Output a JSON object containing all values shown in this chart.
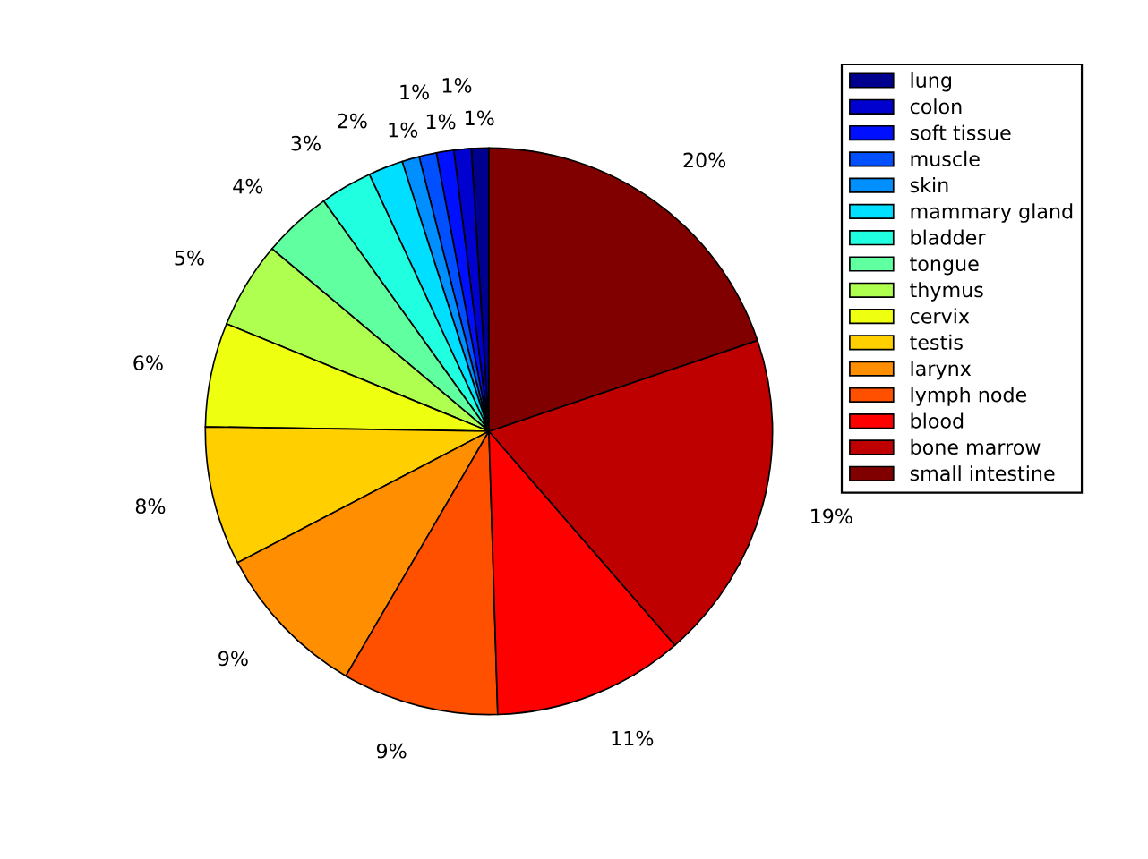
{
  "chart_data": {
    "type": "pie",
    "categories": [
      "lung",
      "colon",
      "soft tissue",
      "muscle",
      "skin",
      "mammary gland",
      "bladder",
      "tongue",
      "thymus",
      "cervix",
      "testis",
      "larynx",
      "lymph node",
      "blood",
      "bone marrow",
      "small intestine"
    ],
    "values": [
      1,
      1,
      1,
      1,
      1,
      2,
      3,
      4,
      5,
      6,
      8,
      9,
      9,
      11,
      19,
      20
    ],
    "value_labels": [
      "1%",
      "1%",
      "1%",
      "1%",
      "1%",
      "2%",
      "3%",
      "4%",
      "5%",
      "6%",
      "8%",
      "9%",
      "9%",
      "11%",
      "19%",
      "20%"
    ],
    "colors": [
      "#00008f",
      "#0000cf",
      "#0010ff",
      "#0050ff",
      "#008fff",
      "#00dfff",
      "#20ffdf",
      "#60ffa0",
      "#afff50",
      "#efff10",
      "#ffcf00",
      "#ff8f00",
      "#ff5000",
      "#ff0000",
      "#bf0000",
      "#800000"
    ],
    "legend": "right"
  }
}
